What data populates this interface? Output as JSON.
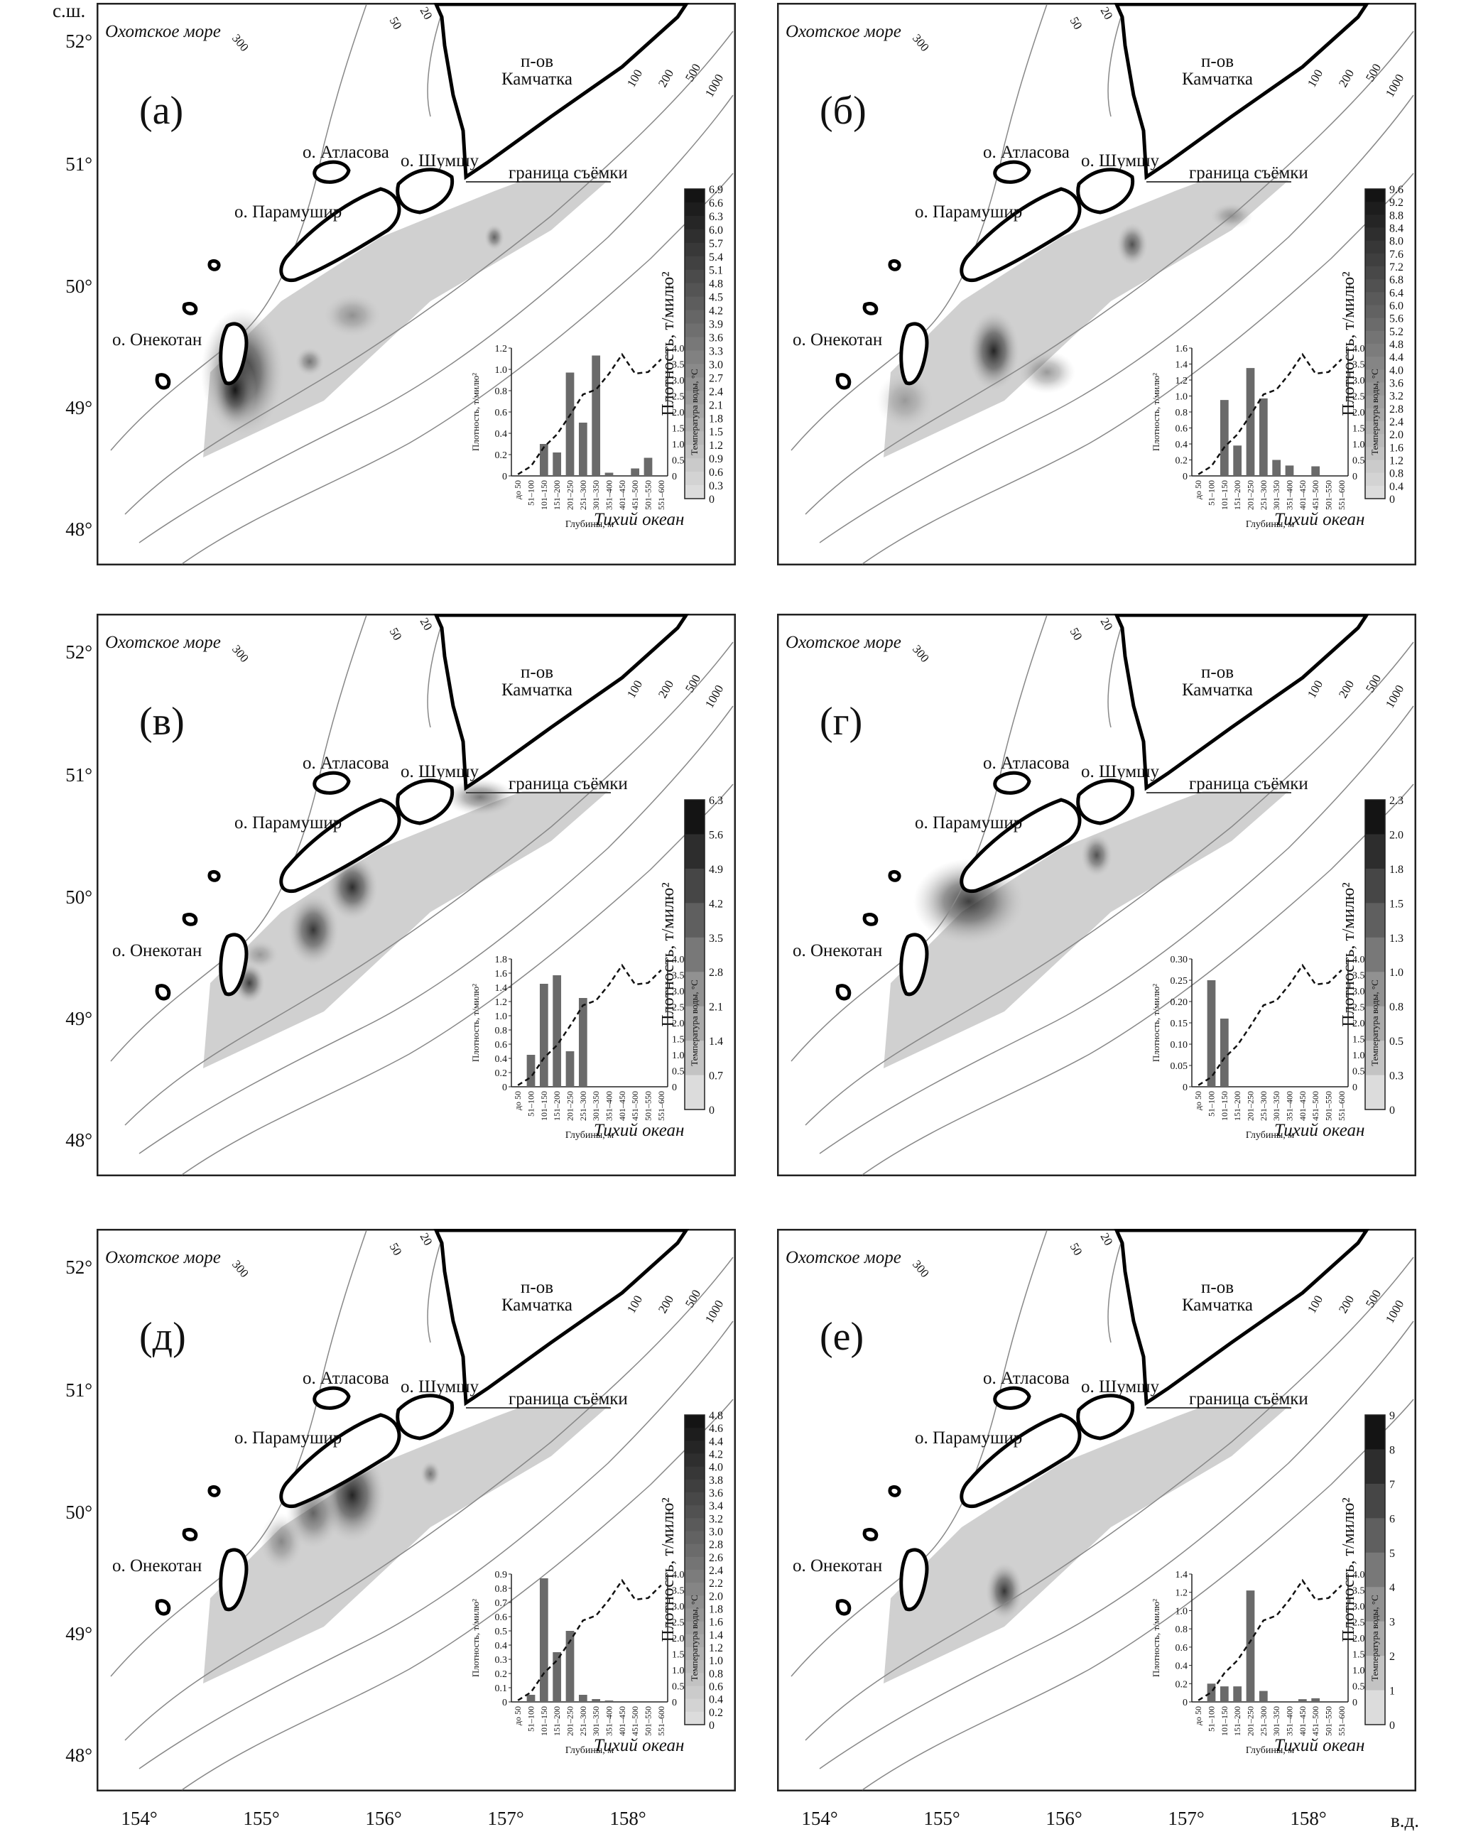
{
  "corner_labels": {
    "lat_unit": "с.ш.",
    "lon_unit": "в.д."
  },
  "lat_ticks": [
    "52°",
    "51°",
    "50°",
    "49°",
    "48°"
  ],
  "lon_ticks": [
    "154°",
    "155°",
    "156°",
    "157°",
    "158°"
  ],
  "map_labels": {
    "sea": "Охотское море",
    "ocean": "Тихий океан",
    "peninsula_1": "п-ов",
    "peninsula_2": "Камчатка",
    "atlasova": "о. Атласова",
    "shumshu": "о. Шумшу",
    "paramushir": "о. Парамушир",
    "onekotan": "о. Онекотан",
    "survey_border": "граница съёмки",
    "iso_300": "300",
    "iso_50": "50",
    "iso_20": "20",
    "iso_100": "100",
    "iso_200": "200",
    "iso_500": "500",
    "iso_1000": "1000"
  },
  "colorbar_title": "Плотность, т/милю²",
  "inset_common": {
    "y_left_label": "Плотность, т/милю²",
    "y_right_label": "Температура воды, °С",
    "x_label": "Глубины, м",
    "depth_categories": [
      "до 50",
      "51–100",
      "101–150",
      "151–200",
      "201–250",
      "251–300",
      "301–350",
      "351–400",
      "401–450",
      "451–500",
      "501–550",
      "551–600"
    ],
    "temp_ticks": [
      "0",
      "0.5",
      "1.0",
      "1.5",
      "2.0",
      "2.5",
      "3.0",
      "3.5",
      "4.0"
    ]
  },
  "panels": [
    {
      "id": "a",
      "letter": "(а)",
      "colorbar_ticks": [
        "6.9",
        "6.6",
        "6.3",
        "6.0",
        "5.7",
        "5.4",
        "5.1",
        "4.8",
        "4.5",
        "4.2",
        "3.9",
        "3.6",
        "3.3",
        "3.0",
        "2.7",
        "2.4",
        "2.1",
        "1.8",
        "1.5",
        "1.2",
        "0.9",
        "0.6",
        "0.3",
        "0"
      ],
      "chart_data": {
        "type": "bar",
        "categories": [
          "до 50",
          "51–100",
          "101–150",
          "151–200",
          "201–250",
          "251–300",
          "301–350",
          "351–400",
          "401–450",
          "451–500",
          "501–550",
          "551–600"
        ],
        "series": [
          {
            "values": [
              0,
              0,
              0.3,
              0.22,
              0.97,
              0.5,
              1.13,
              0.03,
              0,
              0.07,
              0.17,
              0
            ]
          },
          {
            "values": [
              0.05,
              0.3,
              0.9,
              1.3,
              1.9,
              2.55,
              2.7,
              3.2,
              3.8,
              3.2,
              3.25,
              3.65
            ]
          }
        ],
        "y_left_ticks": [
          "0",
          "0.2",
          "0.4",
          "0.6",
          "0.8",
          "1.0",
          "1.2"
        ],
        "y_left_max": 1.2,
        "y_right_max": 4.0
      }
    },
    {
      "id": "b",
      "letter": "(б)",
      "colorbar_ticks": [
        "9.6",
        "9.2",
        "8.8",
        "8.4",
        "8.0",
        "7.6",
        "7.2",
        "6.8",
        "6.4",
        "6.0",
        "5.6",
        "5.2",
        "4.8",
        "4.4",
        "4.0",
        "3.6",
        "3.2",
        "2.8",
        "2.4",
        "2.0",
        "1.6",
        "1.2",
        "0.8",
        "0.4",
        "0"
      ],
      "chart_data": {
        "type": "bar",
        "categories": [
          "до 50",
          "51–100",
          "101–150",
          "151–200",
          "201–250",
          "251–300",
          "301–350",
          "351–400",
          "401–450",
          "451–500",
          "501–550",
          "551–600"
        ],
        "series": [
          {
            "values": [
              0,
              0,
              0.95,
              0.38,
              1.35,
              0.97,
              0.2,
              0.13,
              0,
              0.12,
              0,
              0
            ]
          },
          {
            "values": [
              0.05,
              0.3,
              0.9,
              1.3,
              1.9,
              2.55,
              2.7,
              3.2,
              3.8,
              3.2,
              3.25,
              3.65
            ]
          }
        ],
        "y_left_ticks": [
          "0",
          "0.2",
          "0.4",
          "0.6",
          "0.8",
          "1.0",
          "1.2",
          "1.4",
          "1.6"
        ],
        "y_left_max": 1.6,
        "y_right_max": 4.0
      }
    },
    {
      "id": "v",
      "letter": "(в)",
      "colorbar_ticks": [
        "6.3",
        "5.6",
        "4.9",
        "4.2",
        "3.5",
        "2.8",
        "2.1",
        "1.4",
        "0.7",
        "0"
      ],
      "chart_data": {
        "type": "bar",
        "categories": [
          "до 50",
          "51–100",
          "101–150",
          "151–200",
          "201–250",
          "251–300",
          "301–350",
          "351–400",
          "401–450",
          "451–500",
          "501–550",
          "551–600"
        ],
        "series": [
          {
            "values": [
              0,
              0.45,
              1.45,
              1.57,
              0.5,
              1.25,
              0,
              0,
              0,
              0,
              0,
              0
            ]
          },
          {
            "values": [
              0.05,
              0.3,
              0.9,
              1.3,
              1.9,
              2.55,
              2.7,
              3.2,
              3.8,
              3.2,
              3.25,
              3.65
            ]
          }
        ],
        "y_left_ticks": [
          "0",
          "0.2",
          "0.4",
          "0.6",
          "0.8",
          "1.0",
          "1.2",
          "1.4",
          "1.6",
          "1.8"
        ],
        "y_left_max": 1.8,
        "y_right_max": 4.0
      }
    },
    {
      "id": "g",
      "letter": "(г)",
      "colorbar_ticks": [
        "2.3",
        "2.0",
        "1.8",
        "1.5",
        "1.3",
        "1.0",
        "0.8",
        "0.5",
        "0.3",
        "0"
      ],
      "chart_data": {
        "type": "bar",
        "categories": [
          "до 50",
          "51–100",
          "101–150",
          "151–200",
          "201–250",
          "251–300",
          "301–350",
          "351–400",
          "401–450",
          "451–500",
          "501–550",
          "551–600"
        ],
        "series": [
          {
            "values": [
              0,
              0.25,
              0.16,
              0,
              0,
              0,
              0,
              0,
              0,
              0,
              0,
              0
            ]
          },
          {
            "values": [
              0.05,
              0.3,
              0.9,
              1.3,
              1.9,
              2.55,
              2.7,
              3.2,
              3.8,
              3.2,
              3.25,
              3.65
            ]
          }
        ],
        "y_left_ticks": [
          "0",
          "0.05",
          "0.10",
          "0.15",
          "0.20",
          "0.25",
          "0.30"
        ],
        "y_left_max": 0.3,
        "y_right_max": 4.0
      }
    },
    {
      "id": "d",
      "letter": "(д)",
      "colorbar_ticks": [
        "4.8",
        "4.6",
        "4.4",
        "4.2",
        "4.0",
        "3.8",
        "3.6",
        "3.4",
        "3.2",
        "3.0",
        "2.8",
        "2.6",
        "2.4",
        "2.2",
        "2.0",
        "1.8",
        "1.6",
        "1.4",
        "1.2",
        "1.0",
        "0.8",
        "0.6",
        "0.4",
        "0.2",
        "0"
      ],
      "chart_data": {
        "type": "bar",
        "categories": [
          "до 50",
          "51–100",
          "101–150",
          "151–200",
          "201–250",
          "251–300",
          "301–350",
          "351–400",
          "401–450",
          "451–500",
          "501–550",
          "551–600"
        ],
        "series": [
          {
            "values": [
              0,
              0.05,
              0.87,
              0.35,
              0.5,
              0.05,
              0.02,
              0.01,
              0,
              0,
              0,
              0
            ]
          },
          {
            "values": [
              0.05,
              0.3,
              0.9,
              1.3,
              1.9,
              2.55,
              2.7,
              3.2,
              3.8,
              3.2,
              3.25,
              3.65
            ]
          }
        ],
        "y_left_ticks": [
          "0",
          "0.1",
          "0.2",
          "0.3",
          "0.4",
          "0.5",
          "0.6",
          "0.7",
          "0.8",
          "0.9"
        ],
        "y_left_max": 0.9,
        "y_right_max": 4.0
      }
    },
    {
      "id": "e",
      "letter": "(е)",
      "colorbar_ticks": [
        "9",
        "8",
        "7",
        "6",
        "5",
        "4",
        "3",
        "2",
        "1",
        "0"
      ],
      "chart_data": {
        "type": "bar",
        "categories": [
          "до 50",
          "51–100",
          "101–150",
          "151–200",
          "201–250",
          "251–300",
          "301–350",
          "351–400",
          "401–450",
          "451–500",
          "501–550",
          "551–600"
        ],
        "series": [
          {
            "values": [
              0,
              0.2,
              0.17,
              0.17,
              1.22,
              0.12,
              0,
              0,
              0.03,
              0.04,
              0,
              0
            ]
          },
          {
            "values": [
              0.05,
              0.3,
              0.9,
              1.3,
              1.9,
              2.55,
              2.7,
              3.2,
              3.8,
              3.2,
              3.25,
              3.65
            ]
          }
        ],
        "y_left_ticks": [
          "0",
          "0.2",
          "0.4",
          "0.6",
          "0.8",
          "1.0",
          "1.2",
          "1.4"
        ],
        "y_left_max": 1.4,
        "y_right_max": 4.0
      }
    }
  ]
}
